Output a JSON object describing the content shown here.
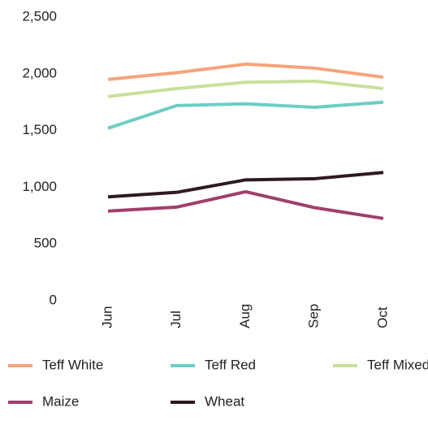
{
  "chart_data": {
    "type": "line",
    "categories": [
      "Jun",
      "Jul",
      "Aug",
      "Sep",
      "Oct"
    ],
    "series": [
      {
        "name": "Teff White",
        "color": "#f4a47c",
        "values": [
          1950,
          2010,
          2085,
          2050,
          1970
        ]
      },
      {
        "name": "Teff Red",
        "color": "#6ecdc4",
        "values": [
          1520,
          1720,
          1735,
          1705,
          1750
        ]
      },
      {
        "name": "Teff Mixed",
        "color": "#c8e09b",
        "values": [
          1800,
          1870,
          1925,
          1935,
          1870
        ]
      },
      {
        "name": "Maize",
        "color": "#a0406a",
        "values": [
          790,
          825,
          960,
          820,
          725
        ]
      },
      {
        "name": "Wheat",
        "color": "#2e1a22",
        "values": [
          915,
          955,
          1065,
          1075,
          1130
        ]
      }
    ],
    "ylim": [
      0,
      2500
    ],
    "yticks": [
      0,
      500,
      {
        "value": 1000,
        "label": "1,000"
      },
      {
        "value": 1500,
        "label": "1,500"
      },
      {
        "value": 2000,
        "label": "2,000"
      },
      {
        "value": 2500,
        "label": "2,500"
      }
    ],
    "grid": false,
    "legend": "bottom"
  }
}
